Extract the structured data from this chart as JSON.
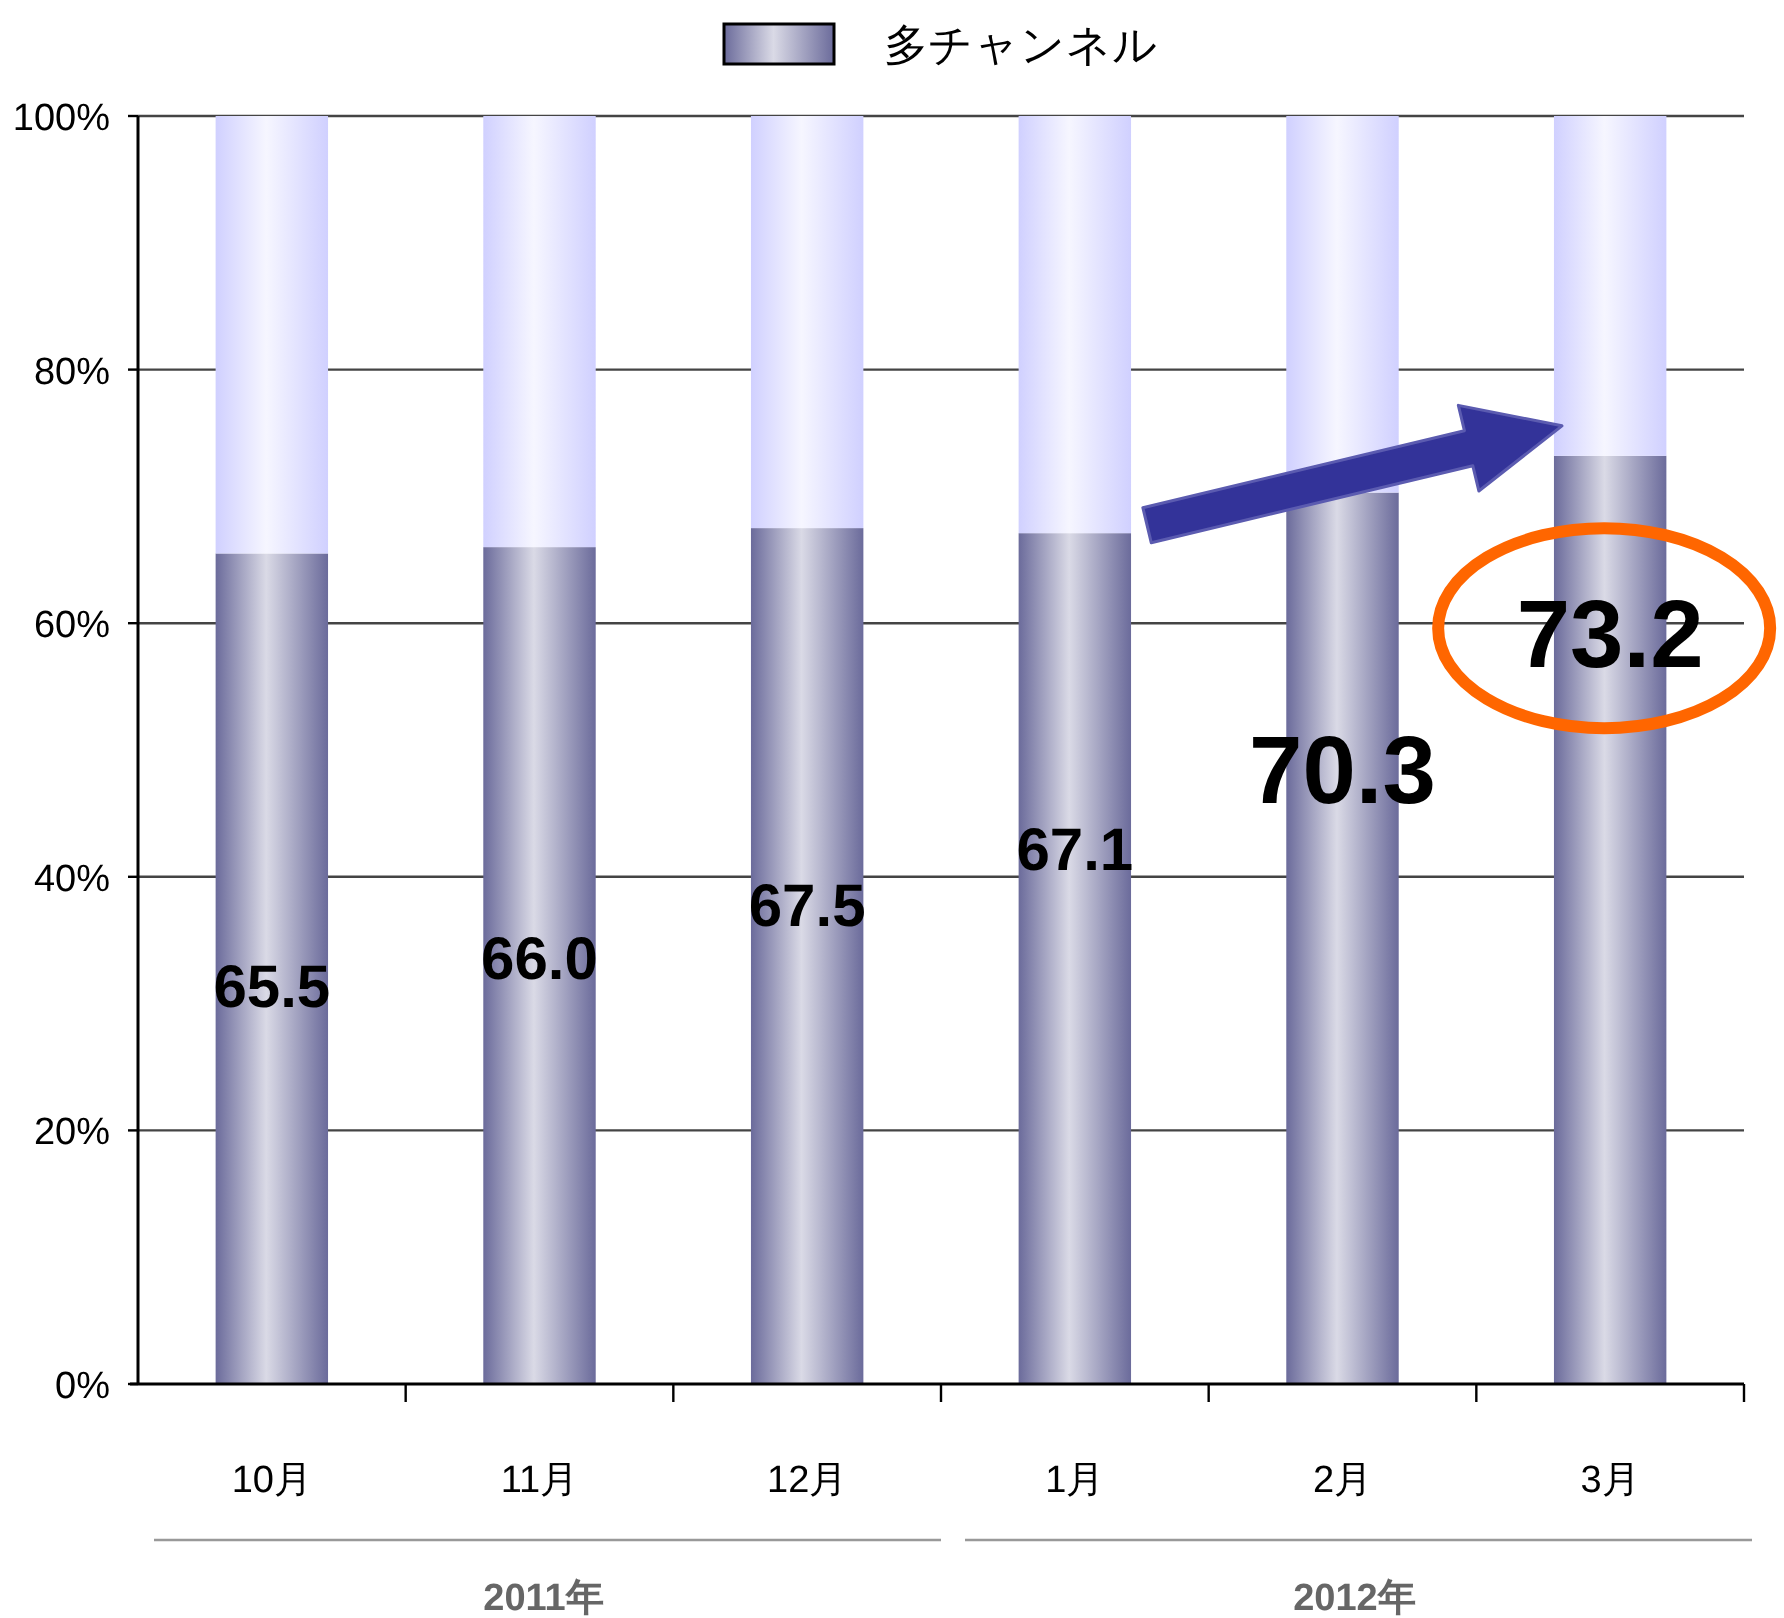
{
  "chart_data": {
    "type": "bar",
    "stacked": true,
    "categories": [
      "10月",
      "11月",
      "12月",
      "1月",
      "2月",
      "3月"
    ],
    "series": [
      {
        "name": "多チャンネル",
        "color": "#6b6b9b",
        "values": [
          65.5,
          66.0,
          67.5,
          67.1,
          70.3,
          73.2
        ],
        "value_labels": [
          "65.5",
          "66.0",
          "67.5",
          "67.1",
          "70.3",
          "73.2"
        ]
      },
      {
        "color": "#d0d0ff",
        "values": [
          34.5,
          34.0,
          32.5,
          32.9,
          29.7,
          26.8
        ]
      }
    ],
    "ylim": [
      0,
      100
    ],
    "yticks": [
      {
        "value": 0,
        "label": "0%"
      },
      {
        "value": 20,
        "label": "20%"
      },
      {
        "value": 40,
        "label": "40%"
      },
      {
        "value": 60,
        "label": "60%"
      },
      {
        "value": 80,
        "label": "80%"
      },
      {
        "value": 100,
        "label": "100%"
      }
    ],
    "grid": "y",
    "legend": "top",
    "annotations": [
      "2011年",
      "2012年"
    ]
  }
}
